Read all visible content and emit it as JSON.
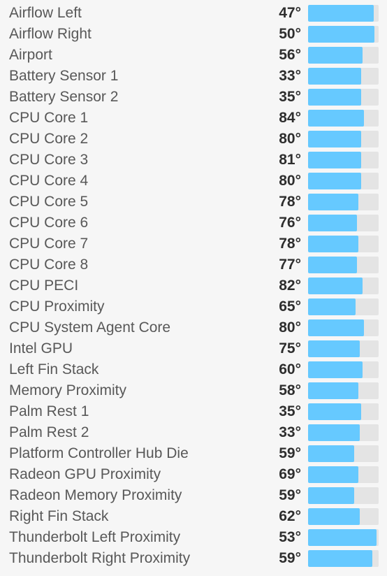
{
  "sensors": [
    {
      "name": "Airflow Left",
      "value": "47°",
      "fill": 0.93
    },
    {
      "name": "Airflow Right",
      "value": "50°",
      "fill": 0.94
    },
    {
      "name": "Airport",
      "value": "56°",
      "fill": 0.77
    },
    {
      "name": "Battery Sensor 1",
      "value": "33°",
      "fill": 0.75
    },
    {
      "name": "Battery Sensor 2",
      "value": "35°",
      "fill": 0.75
    },
    {
      "name": "CPU Core 1",
      "value": "84°",
      "fill": 0.79
    },
    {
      "name": "CPU Core 2",
      "value": "80°",
      "fill": 0.75
    },
    {
      "name": "CPU Core 3",
      "value": "81°",
      "fill": 0.75
    },
    {
      "name": "CPU Core 4",
      "value": "80°",
      "fill": 0.75
    },
    {
      "name": "CPU Core 5",
      "value": "78°",
      "fill": 0.71
    },
    {
      "name": "CPU Core 6",
      "value": "76°",
      "fill": 0.69
    },
    {
      "name": "CPU Core 7",
      "value": "78°",
      "fill": 0.71
    },
    {
      "name": "CPU Core 8",
      "value": "77°",
      "fill": 0.69
    },
    {
      "name": "CPU PECI",
      "value": "82°",
      "fill": 0.77
    },
    {
      "name": "CPU Proximity",
      "value": "65°",
      "fill": 0.67
    },
    {
      "name": "CPU System Agent Core",
      "value": "80°",
      "fill": 0.79
    },
    {
      "name": "Intel GPU",
      "value": "75°",
      "fill": 0.73
    },
    {
      "name": "Left Fin Stack",
      "value": "60°",
      "fill": 0.77
    },
    {
      "name": "Memory Proximity",
      "value": "58°",
      "fill": 0.71
    },
    {
      "name": "Palm Rest 1",
      "value": "35°",
      "fill": 0.75
    },
    {
      "name": "Palm Rest 2",
      "value": "33°",
      "fill": 0.73
    },
    {
      "name": "Platform Controller Hub Die",
      "value": "59°",
      "fill": 0.65
    },
    {
      "name": "Radeon GPU Proximity",
      "value": "69°",
      "fill": 0.71
    },
    {
      "name": "Radeon Memory Proximity",
      "value": "59°",
      "fill": 0.65
    },
    {
      "name": "Right Fin Stack",
      "value": "62°",
      "fill": 0.73
    },
    {
      "name": "Thunderbolt Left Proximity",
      "value": "53°",
      "fill": 0.97
    },
    {
      "name": "Thunderbolt Right Proximity",
      "value": "59°",
      "fill": 0.91
    }
  ]
}
